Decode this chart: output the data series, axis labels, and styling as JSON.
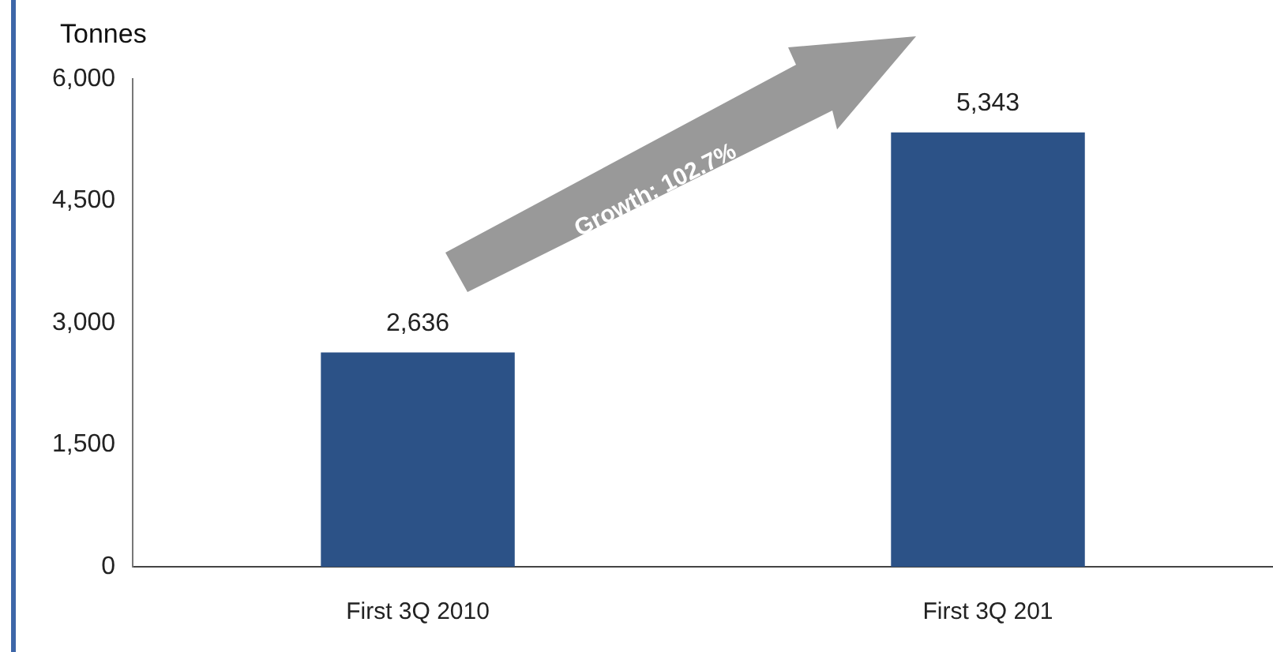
{
  "chart_data": {
    "type": "bar",
    "ylabel": "Tonnes",
    "categories": [
      "First 3Q 2010",
      "First 3Q 201"
    ],
    "values": [
      2636,
      5343
    ],
    "value_labels": [
      "2,636",
      "5,343"
    ],
    "color": "#2c5287",
    "ylim": [
      0,
      6000
    ],
    "yticks": [
      {
        "value": 0,
        "label": "0"
      },
      {
        "value": 1500,
        "label": "1,500"
      },
      {
        "value": 3000,
        "label": "3,000"
      },
      {
        "value": 4500,
        "label": "4,500"
      },
      {
        "value": 6000,
        "label": "6,000"
      }
    ],
    "grid": false,
    "legend": false,
    "annotations": [
      "Growth: 102.7%"
    ]
  }
}
